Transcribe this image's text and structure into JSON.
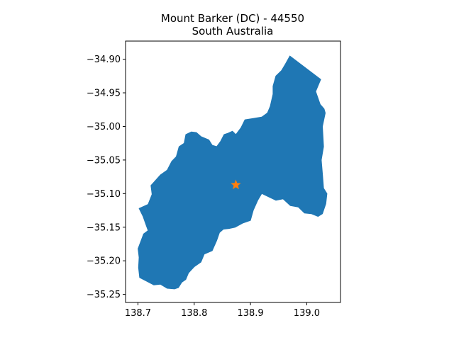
{
  "chart_data": {
    "type": "map",
    "title_line1": "Mount Barker (DC) - 44550",
    "title_line2": "South Australia",
    "xlabel": "",
    "ylabel": "",
    "xlim": [
      138.678,
      139.06
    ],
    "ylim": [
      -35.262,
      -34.873
    ],
    "x_ticks": [
      138.7,
      138.8,
      138.9,
      139.0
    ],
    "x_tick_labels": [
      "138.7",
      "138.8",
      "138.9",
      "139.0"
    ],
    "y_ticks": [
      -34.9,
      -34.95,
      -35.0,
      -35.05,
      -35.1,
      -35.15,
      -35.2,
      -35.25
    ],
    "y_tick_labels": [
      "−34.90",
      "−34.95",
      "−35.00",
      "−35.05",
      "−35.10",
      "−35.15",
      "−35.20",
      "−35.25"
    ],
    "grid": false,
    "region": {
      "fill": "#1f77b4",
      "boundary": [
        [
          138.97,
          -34.895
        ],
        [
          139.025,
          -34.93
        ],
        [
          139.016,
          -34.948
        ],
        [
          139.024,
          -34.967
        ],
        [
          139.031,
          -34.974
        ],
        [
          139.033,
          -34.98
        ],
        [
          139.028,
          -35.0
        ],
        [
          139.03,
          -35.03
        ],
        [
          139.026,
          -35.05
        ],
        [
          139.028,
          -35.07
        ],
        [
          139.03,
          -35.092
        ],
        [
          139.036,
          -35.1
        ],
        [
          139.034,
          -35.115
        ],
        [
          139.028,
          -35.13
        ],
        [
          139.02,
          -35.134
        ],
        [
          139.008,
          -35.13
        ],
        [
          138.996,
          -35.129
        ],
        [
          138.985,
          -35.12
        ],
        [
          138.971,
          -35.118
        ],
        [
          138.958,
          -35.108
        ],
        [
          138.945,
          -35.11
        ],
        [
          138.935,
          -35.106
        ],
        [
          138.92,
          -35.1
        ],
        [
          138.913,
          -35.11
        ],
        [
          138.905,
          -35.125
        ],
        [
          138.9,
          -35.14
        ],
        [
          138.886,
          -35.144
        ],
        [
          138.873,
          -35.15
        ],
        [
          138.862,
          -35.152
        ],
        [
          138.852,
          -35.153
        ],
        [
          138.845,
          -35.158
        ],
        [
          138.84,
          -35.17
        ],
        [
          138.832,
          -35.185
        ],
        [
          138.818,
          -35.19
        ],
        [
          138.812,
          -35.202
        ],
        [
          138.8,
          -35.209
        ],
        [
          138.79,
          -35.218
        ],
        [
          138.785,
          -35.228
        ],
        [
          138.778,
          -35.232
        ],
        [
          138.772,
          -35.24
        ],
        [
          138.765,
          -35.242
        ],
        [
          138.752,
          -35.241
        ],
        [
          138.74,
          -35.235
        ],
        [
          138.728,
          -35.236
        ],
        [
          138.712,
          -35.229
        ],
        [
          138.703,
          -35.225
        ],
        [
          138.701,
          -35.21
        ],
        [
          138.702,
          -35.195
        ],
        [
          138.7,
          -35.182
        ],
        [
          138.71,
          -35.16
        ],
        [
          138.718,
          -35.155
        ],
        [
          138.714,
          -35.146
        ],
        [
          138.709,
          -35.134
        ],
        [
          138.702,
          -35.122
        ],
        [
          138.718,
          -35.116
        ],
        [
          138.725,
          -35.101
        ],
        [
          138.723,
          -35.088
        ],
        [
          138.74,
          -35.072
        ],
        [
          138.752,
          -35.065
        ],
        [
          138.76,
          -35.052
        ],
        [
          138.768,
          -35.045
        ],
        [
          138.773,
          -35.03
        ],
        [
          138.782,
          -35.025
        ],
        [
          138.785,
          -35.012
        ],
        [
          138.795,
          -35.008
        ],
        [
          138.804,
          -35.009
        ],
        [
          138.812,
          -35.015
        ],
        [
          138.826,
          -35.02
        ],
        [
          138.832,
          -35.028
        ],
        [
          138.84,
          -35.03
        ],
        [
          138.847,
          -35.022
        ],
        [
          138.853,
          -35.012
        ],
        [
          138.86,
          -35.01
        ],
        [
          138.868,
          -35.007
        ],
        [
          138.874,
          -35.012
        ],
        [
          138.883,
          -35.002
        ],
        [
          138.89,
          -34.99
        ],
        [
          138.905,
          -34.988
        ],
        [
          138.92,
          -34.986
        ],
        [
          138.93,
          -34.98
        ],
        [
          138.935,
          -34.97
        ],
        [
          138.94,
          -34.952
        ],
        [
          138.94,
          -34.94
        ],
        [
          138.945,
          -34.925
        ],
        [
          138.955,
          -34.917
        ],
        [
          138.962,
          -34.907
        ]
      ]
    },
    "marker": {
      "symbol": "star",
      "color": "#ff7f0e",
      "x": 138.874,
      "y": -35.087
    }
  }
}
